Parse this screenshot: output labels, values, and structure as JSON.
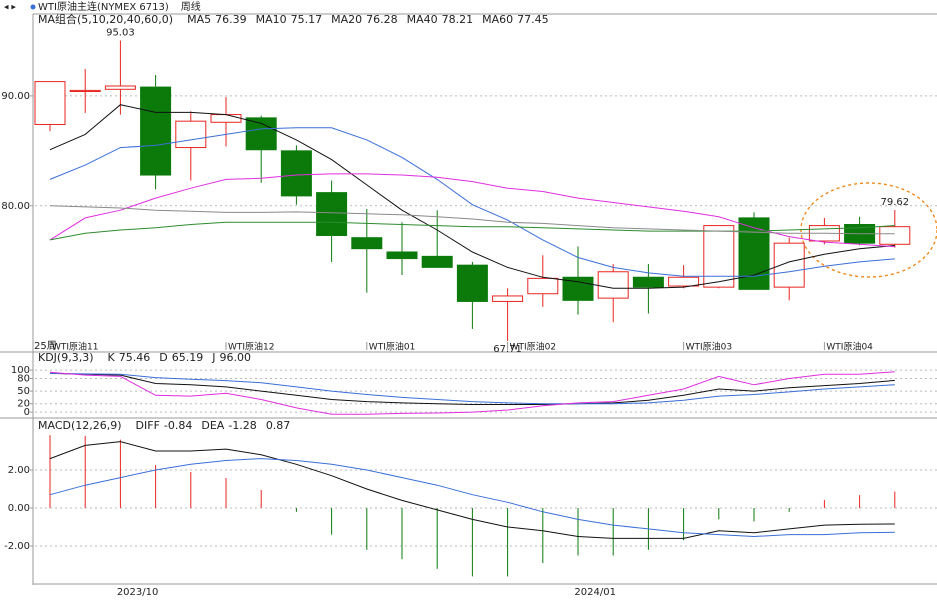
{
  "header": {
    "instrument": "WTI原油主连(NYMEX 6713)",
    "period": "周线"
  },
  "chart_data": [
    {
      "type": "candlestick",
      "indicator": "MA组合(5,10,20,40,60,0)",
      "period_label": "25周",
      "ylim": [
        66.7,
        97.45
      ],
      "yticks": [
        {
          "value": 80,
          "label": "80.00"
        },
        {
          "value": 90,
          "label": "90.00"
        }
      ],
      "up_color": "#e8251f",
      "down_color": "#0b7a0b",
      "grid": true,
      "contracts": [
        "WTI原油11",
        null,
        null,
        null,
        null,
        "WTI原油12",
        null,
        null,
        null,
        "WTI原油01",
        null,
        null,
        null,
        "WTI原油02",
        null,
        null,
        null,
        null,
        "WTI原油03",
        null,
        null,
        null,
        "WTI原油04",
        null,
        null
      ],
      "dates": [
        null,
        null,
        null,
        "2023/10",
        null,
        null,
        null,
        null,
        null,
        null,
        null,
        null,
        null,
        null,
        null,
        null,
        "2024/01",
        null,
        null,
        null,
        null,
        null,
        null,
        null,
        null
      ],
      "open": [
        87.4,
        90.4,
        90.6,
        90.8,
        85.3,
        87.6,
        88.0,
        85.0,
        81.2,
        77.1,
        75.8,
        75.4,
        74.6,
        71.3,
        72.0,
        73.5,
        71.6,
        73.5,
        72.7,
        72.6,
        78.9,
        72.6,
        76.8,
        78.3,
        76.5
      ],
      "high": [
        91.3,
        92.45,
        95.03,
        91.9,
        88.6,
        89.9,
        88.2,
        85.5,
        82.3,
        79.7,
        78.5,
        79.6,
        74.9,
        72.5,
        75.5,
        76.3,
        74.7,
        74.7,
        74.6,
        78.2,
        79.4,
        77.1,
        78.9,
        79.0,
        79.62
      ],
      "low": [
        86.8,
        88.45,
        88.3,
        81.5,
        82.3,
        85.4,
        82.1,
        80.1,
        74.9,
        72.1,
        73.7,
        74.4,
        68.8,
        67.71,
        70.8,
        70.1,
        69.4,
        70.2,
        72.5,
        72.5,
        72.4,
        71.4,
        76.5,
        76.4,
        76.2
      ],
      "close": [
        91.3,
        90.5,
        90.9,
        82.8,
        87.7,
        88.3,
        85.1,
        80.9,
        77.3,
        76.1,
        75.2,
        74.4,
        71.3,
        71.8,
        73.4,
        71.4,
        74.0,
        72.6,
        73.5,
        78.2,
        72.4,
        76.6,
        78.2,
        76.6,
        78.1
      ],
      "annotations": [
        {
          "bind": "high",
          "index": 2
        },
        {
          "bind": "low",
          "index": 13
        },
        {
          "bind": "high",
          "index": 24
        }
      ],
      "series": [
        {
          "name": "MA5",
          "color": "#111111",
          "values": [
            85.1,
            86.5,
            89.2,
            88.5,
            88.5,
            88.3,
            87.5,
            86.0,
            84.2,
            81.9,
            79.6,
            77.8,
            75.8,
            74.4,
            73.5,
            73.1,
            72.5,
            72.5,
            72.6,
            73.1,
            73.7,
            74.9,
            75.6,
            76.1,
            76.39
          ]
        },
        {
          "name": "MA10",
          "color": "#3a6fd8",
          "values": [
            82.4,
            83.7,
            85.3,
            85.5,
            86.0,
            86.5,
            87.0,
            87.1,
            87.1,
            86.0,
            84.4,
            82.4,
            80.1,
            78.7,
            76.9,
            75.3,
            74.4,
            73.9,
            73.6,
            73.6,
            73.6,
            74.0,
            74.5,
            74.9,
            75.17
          ]
        },
        {
          "name": "MA20",
          "color": "#e02ee0",
          "values": [
            76.9,
            78.9,
            79.6,
            80.7,
            81.6,
            82.4,
            82.5,
            82.8,
            82.9,
            82.9,
            82.8,
            82.6,
            82.2,
            81.6,
            81.3,
            80.7,
            80.3,
            79.9,
            79.5,
            79.0,
            78.0,
            77.2,
            76.7,
            76.5,
            76.28
          ]
        },
        {
          "name": "MA40",
          "color": "#2e8b2e",
          "values": [
            76.9,
            77.5,
            77.8,
            78.0,
            78.3,
            78.5,
            78.5,
            78.5,
            78.5,
            78.4,
            78.3,
            78.2,
            78.1,
            78.1,
            78.0,
            77.9,
            77.8,
            77.7,
            77.7,
            77.7,
            77.7,
            77.8,
            77.9,
            78.0,
            78.21
          ]
        },
        {
          "name": "MA60",
          "color": "#8a8a8a",
          "values": [
            80.0,
            79.9,
            79.8,
            79.6,
            79.5,
            79.4,
            79.4,
            79.45,
            79.36,
            79.27,
            79.18,
            79.0,
            78.8,
            78.5,
            78.4,
            78.2,
            78.0,
            77.9,
            77.8,
            77.7,
            77.6,
            77.5,
            77.5,
            77.45,
            77.45
          ]
        }
      ]
    },
    {
      "type": "line",
      "indicator": "KDJ(9,3,3)",
      "ylim": [
        -14,
        143
      ],
      "yticks": [
        0,
        20,
        50,
        80,
        100
      ],
      "grid": true,
      "series": [
        {
          "name": "K",
          "color": "#111111",
          "label": "75.46",
          "values": [
            92,
            90,
            88,
            68,
            65,
            60,
            50,
            40,
            30,
            25,
            22,
            20,
            18,
            18,
            18,
            20,
            22,
            28,
            40,
            55,
            50,
            58,
            63,
            68,
            75.46
          ]
        },
        {
          "name": "D",
          "color": "#3a6fd8",
          "label": "65.19",
          "values": [
            92,
            91,
            90,
            82,
            78,
            75,
            70,
            60,
            50,
            42,
            35,
            30,
            25,
            22,
            20,
            20,
            20,
            22,
            28,
            38,
            42,
            48,
            55,
            60,
            65.19
          ]
        },
        {
          "name": "J",
          "color": "#e02ee0",
          "label": "96.00",
          "values": [
            95,
            88,
            85,
            40,
            38,
            45,
            30,
            10,
            -5,
            -5,
            -3,
            -2,
            0,
            5,
            15,
            22,
            25,
            40,
            55,
            85,
            65,
            80,
            90,
            90,
            96
          ]
        }
      ]
    },
    {
      "type": "macd",
      "indicator": "MACD(12,26,9)",
      "ylim": [
        -4.0,
        4.74
      ],
      "yticks": [
        {
          "value": -2,
          "label": "-2.00"
        },
        {
          "value": 0,
          "label": "0.00"
        },
        {
          "value": 2,
          "label": "2.00"
        }
      ],
      "grid": true,
      "up_color": "#e8251f",
      "down_color": "#0b7a0b",
      "values": [
        3.84,
        3.8,
        3.6,
        2.26,
        1.9,
        1.58,
        0.95,
        -0.2,
        -1.4,
        -2.2,
        -2.7,
        -3.2,
        -3.6,
        -3.6,
        -2.9,
        -2.5,
        -2.5,
        -2.2,
        -1.7,
        -0.6,
        -0.7,
        -0.2,
        0.42,
        0.68,
        0.87
      ],
      "series": [
        {
          "name": "DIFF",
          "color": "#111111",
          "values": [
            2.6,
            3.3,
            3.5,
            3.0,
            3.0,
            3.1,
            2.8,
            2.3,
            1.7,
            1.0,
            0.4,
            -0.1,
            -0.6,
            -1.0,
            -1.2,
            -1.5,
            -1.6,
            -1.6,
            -1.6,
            -1.2,
            -1.3,
            -1.1,
            -0.9,
            -0.85,
            -0.84
          ]
        },
        {
          "name": "DEA",
          "color": "#3a6fd8",
          "values": [
            0.7,
            1.2,
            1.6,
            2.0,
            2.3,
            2.5,
            2.6,
            2.5,
            2.3,
            2.0,
            1.6,
            1.2,
            0.7,
            0.3,
            -0.2,
            -0.6,
            -0.9,
            -1.1,
            -1.3,
            -1.4,
            -1.5,
            -1.4,
            -1.4,
            -1.3,
            -1.28
          ]
        }
      ]
    }
  ]
}
